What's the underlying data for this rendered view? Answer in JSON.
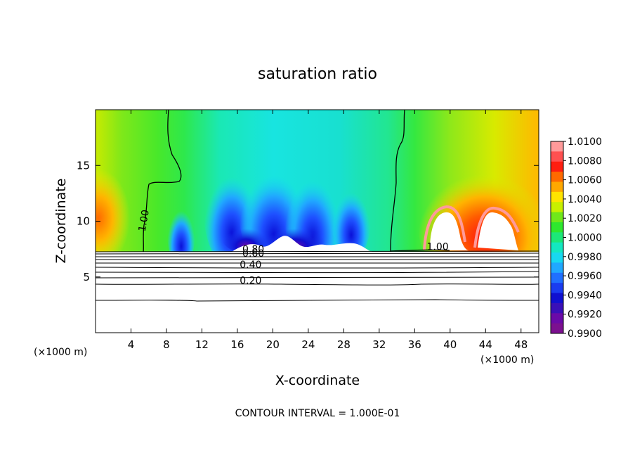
{
  "chart_data": {
    "type": "heatmap",
    "title": "saturation ratio",
    "xlabel": "X-coordinate",
    "ylabel": "Z-coordinate",
    "x_unit_label": "(×1000 m)",
    "x_unit_label_right": "(×1000 m)",
    "footer": "CONTOUR INTERVAL = 1.000E-01",
    "xlim": [
      0,
      50
    ],
    "ylim": [
      0,
      20
    ],
    "x_ticks": [
      4,
      8,
      12,
      16,
      20,
      24,
      28,
      32,
      36,
      40,
      44,
      48
    ],
    "x_tick_labels": [
      "4",
      "8",
      "12",
      "16",
      "20",
      "24",
      "28",
      "32",
      "36",
      "40",
      "44",
      "48"
    ],
    "y_ticks": [
      5,
      10,
      15
    ],
    "y_tick_labels": [
      "5",
      "10",
      "15"
    ],
    "colorbar": {
      "levels": [
        "1.0100",
        "1.0080",
        "1.0060",
        "1.0040",
        "1.0020",
        "1.0000",
        "0.9980",
        "0.9960",
        "0.9940",
        "0.9920",
        "0.9900"
      ],
      "colors": [
        "#ff9a9a",
        "#ff5050",
        "#ff1e10",
        "#ff6a00",
        "#ffa800",
        "#ffe400",
        "#c8f000",
        "#70e81a",
        "#2ee82e",
        "#1ce878",
        "#14e8c0",
        "#18d8f0",
        "#20a8ff",
        "#2070ff",
        "#1a3cf0",
        "#1010d0",
        "#3a10b8",
        "#6a0aa8",
        "#7c1090"
      ]
    },
    "contour_labels": [
      {
        "text": "1.00",
        "x": 5.8,
        "z": 10.0
      },
      {
        "text": "1.00",
        "x": 38.6,
        "z": 7.4
      },
      {
        "text": "0.80",
        "x": 17.8,
        "z": 7.2
      },
      {
        "text": "0.60",
        "x": 17.8,
        "z": 6.8
      },
      {
        "text": "0.40",
        "x": 17.5,
        "z": 5.8
      },
      {
        "text": "0.20",
        "x": 17.5,
        "z": 4.4
      }
    ]
  }
}
